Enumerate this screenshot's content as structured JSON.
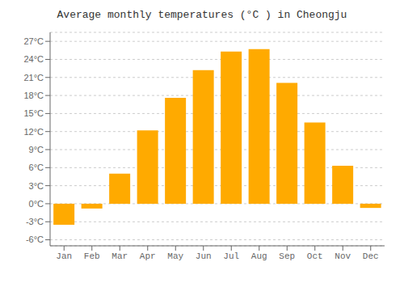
{
  "chart_data": {
    "type": "bar",
    "title": "Average monthly temperatures (°C ) in Cheongju",
    "categories": [
      "Jan",
      "Feb",
      "Mar",
      "Apr",
      "May",
      "Jun",
      "Jul",
      "Aug",
      "Sep",
      "Oct",
      "Nov",
      "Dec"
    ],
    "values": [
      -3.5,
      -0.8,
      5.0,
      12.2,
      17.6,
      22.2,
      25.3,
      25.7,
      20.1,
      13.5,
      6.3,
      -0.7
    ],
    "color": "#FFAA00",
    "ylim": [
      -7,
      28.5
    ],
    "yticks": [
      {
        "value": -6,
        "label": "-6°C"
      },
      {
        "value": -3,
        "label": "-3°C"
      },
      {
        "value": 0,
        "label": "0°C"
      },
      {
        "value": 3,
        "label": "3°C"
      },
      {
        "value": 6,
        "label": "6°C"
      },
      {
        "value": 9,
        "label": "9°C"
      },
      {
        "value": 12,
        "label": "12°C"
      },
      {
        "value": 15,
        "label": "15°C"
      },
      {
        "value": 18,
        "label": "18°C"
      },
      {
        "value": 21,
        "label": "21°C"
      },
      {
        "value": 24,
        "label": "24°C"
      },
      {
        "value": 27,
        "label": "27°C"
      }
    ],
    "grid": true
  }
}
